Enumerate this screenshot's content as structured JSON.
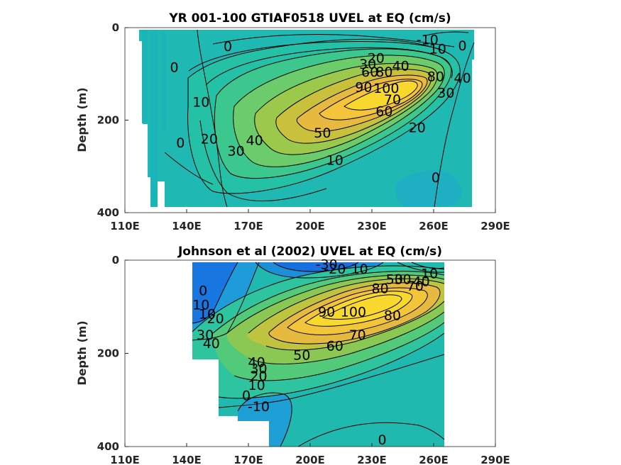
{
  "chart_data": [
    {
      "type": "contour",
      "title": "YR 001-100 GTIAF0518 UVEL at EQ (cm/s)",
      "xlabel": "",
      "ylabel": "Depth (m)",
      "xlim": [
        110,
        290
      ],
      "ylim": [
        0,
        400
      ],
      "y_reversed": true,
      "x_ticks": [
        "110E",
        "140E",
        "170E",
        "200E",
        "230E",
        "260E",
        "290E"
      ],
      "y_ticks": [
        "0",
        "200",
        "400"
      ],
      "colormap": [
        "#0b5fd9",
        "#1aa0d8",
        "#1fbfb0",
        "#5dc96c",
        "#a9c43a",
        "#f2b73c",
        "#fbe320"
      ],
      "core": {
        "lon": 228,
        "depth": 140,
        "max": 100
      },
      "contour_levels": [
        -10,
        0,
        10,
        20,
        30,
        40,
        50,
        60,
        70,
        80,
        90,
        100
      ],
      "contour_labels": [
        {
          "text": "-10",
          "lon": 257,
          "depth": 25
        },
        {
          "text": "10",
          "lon": 262,
          "depth": 45
        },
        {
          "text": "0",
          "lon": 274,
          "depth": 38
        },
        {
          "text": "0",
          "lon": 160,
          "depth": 40
        },
        {
          "text": "20",
          "lon": 232,
          "depth": 65
        },
        {
          "text": "30",
          "lon": 228,
          "depth": 78
        },
        {
          "text": "60",
          "lon": 229,
          "depth": 95
        },
        {
          "text": "80",
          "lon": 236,
          "depth": 95
        },
        {
          "text": "40",
          "lon": 244,
          "depth": 82
        },
        {
          "text": "90",
          "lon": 226,
          "depth": 128
        },
        {
          "text": "100",
          "lon": 237,
          "depth": 130
        },
        {
          "text": "80",
          "lon": 261,
          "depth": 105
        },
        {
          "text": "40",
          "lon": 274,
          "depth": 108
        },
        {
          "text": "30",
          "lon": 266,
          "depth": 140
        },
        {
          "text": "0",
          "lon": 134,
          "depth": 85
        },
        {
          "text": "10",
          "lon": 147,
          "depth": 160
        },
        {
          "text": "70",
          "lon": 240,
          "depth": 155
        },
        {
          "text": "60",
          "lon": 236,
          "depth": 180
        },
        {
          "text": "50",
          "lon": 206,
          "depth": 227
        },
        {
          "text": "20",
          "lon": 252,
          "depth": 215
        },
        {
          "text": "20",
          "lon": 151,
          "depth": 240
        },
        {
          "text": "40",
          "lon": 173,
          "depth": 243
        },
        {
          "text": "30",
          "lon": 164,
          "depth": 266
        },
        {
          "text": "0",
          "lon": 137,
          "depth": 248
        },
        {
          "text": "10",
          "lon": 212,
          "depth": 286
        },
        {
          "text": "0",
          "lon": 261,
          "depth": 323
        }
      ]
    },
    {
      "type": "contour",
      "title": "Johnson et al (2002) UVEL at EQ (cm/s)",
      "xlabel": "",
      "ylabel": "Depth (m)",
      "xlim": [
        110,
        290
      ],
      "ylim": [
        0,
        400
      ],
      "y_reversed": true,
      "x_ticks": [
        "110E",
        "140E",
        "170E",
        "200E",
        "230E",
        "260E",
        "290E"
      ],
      "y_ticks": [
        "0",
        "200",
        "400"
      ],
      "colormap": [
        "#0b5fd9",
        "#1aa0d8",
        "#1fbfb0",
        "#5dc96c",
        "#a9c43a",
        "#f2b73c",
        "#fbe320"
      ],
      "core": {
        "lon": 218,
        "depth": 120,
        "max": 100
      },
      "contour_levels": [
        -30,
        -20,
        -10,
        0,
        10,
        20,
        30,
        40,
        50,
        60,
        70,
        80,
        90,
        100
      ],
      "contour_labels": [
        {
          "text": "-30",
          "lon": 208,
          "depth": 8
        },
        {
          "text": "-20",
          "lon": 212,
          "depth": 18
        },
        {
          "text": "10",
          "lon": 224,
          "depth": 18
        },
        {
          "text": "50",
          "lon": 241,
          "depth": 40
        },
        {
          "text": "30",
          "lon": 245,
          "depth": 40
        },
        {
          "text": "70",
          "lon": 251,
          "depth": 55
        },
        {
          "text": "40",
          "lon": 254,
          "depth": 45
        },
        {
          "text": "10",
          "lon": 258,
          "depth": 28
        },
        {
          "text": "80",
          "lon": 234,
          "depth": 60
        },
        {
          "text": "0",
          "lon": 148,
          "depth": 65
        },
        {
          "text": "10",
          "lon": 147,
          "depth": 95
        },
        {
          "text": "10",
          "lon": 150,
          "depth": 115
        },
        {
          "text": "20",
          "lon": 154,
          "depth": 125
        },
        {
          "text": "90",
          "lon": 208,
          "depth": 110
        },
        {
          "text": "100",
          "lon": 221,
          "depth": 110
        },
        {
          "text": "80",
          "lon": 240,
          "depth": 118
        },
        {
          "text": "30",
          "lon": 149,
          "depth": 160
        },
        {
          "text": "40",
          "lon": 152,
          "depth": 178
        },
        {
          "text": "70",
          "lon": 223,
          "depth": 160
        },
        {
          "text": "60",
          "lon": 212,
          "depth": 183
        },
        {
          "text": "50",
          "lon": 196,
          "depth": 203
        },
        {
          "text": "40",
          "lon": 174,
          "depth": 218
        },
        {
          "text": "30",
          "lon": 175,
          "depth": 232
        },
        {
          "text": "20",
          "lon": 175,
          "depth": 248
        },
        {
          "text": "10",
          "lon": 174,
          "depth": 268
        },
        {
          "text": "0",
          "lon": 169,
          "depth": 290
        },
        {
          "text": "-10",
          "lon": 175,
          "depth": 313
        },
        {
          "text": "0",
          "lon": 235,
          "depth": 385
        }
      ]
    }
  ]
}
